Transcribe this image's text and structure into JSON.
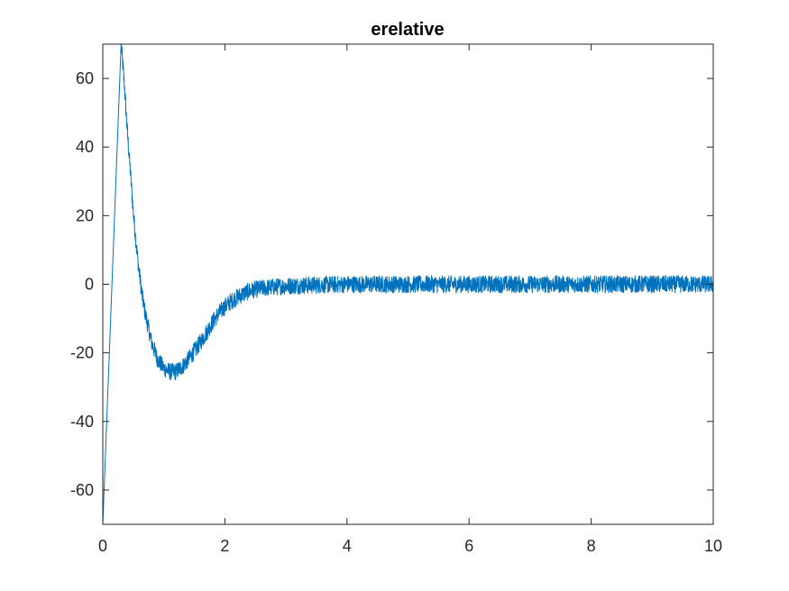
{
  "chart_data": {
    "type": "line",
    "title": "erelative",
    "xlabel": "",
    "ylabel": "",
    "xlim": [
      0,
      10
    ],
    "ylim": [
      -70,
      70
    ],
    "xticks": [
      0,
      2,
      4,
      6,
      8,
      10
    ],
    "yticks": [
      -60,
      -40,
      -20,
      0,
      20,
      40,
      60
    ],
    "grid": false,
    "legend": "none",
    "series": [
      {
        "color": "#0072BD",
        "noise_amplitude": 2.5,
        "x": [
          0,
          0.3,
          0.35,
          0.4,
          0.45,
          0.5,
          0.55,
          0.6,
          0.65,
          0.7,
          0.8,
          0.9,
          1.0,
          1.1,
          1.2,
          1.3,
          1.4,
          1.5,
          1.6,
          1.7,
          1.8,
          1.9,
          2.0,
          2.1,
          2.2,
          2.3,
          2.4,
          2.5,
          2.6,
          2.8,
          3.0,
          3.5,
          4.0,
          5.0,
          6.0,
          7.0,
          8.0,
          9.0,
          10.0
        ],
        "y": [
          -70,
          70,
          59,
          45,
          33,
          21,
          11,
          3,
          -4,
          -9,
          -17,
          -22,
          -24.5,
          -25.5,
          -25.5,
          -24,
          -22,
          -19.5,
          -17,
          -14,
          -11,
          -8.5,
          -6.5,
          -5,
          -3.8,
          -2.8,
          -2,
          -1.5,
          -1.2,
          -0.8,
          -0.5,
          -0.2,
          0,
          0,
          0,
          0,
          0,
          0,
          0
        ]
      }
    ]
  }
}
